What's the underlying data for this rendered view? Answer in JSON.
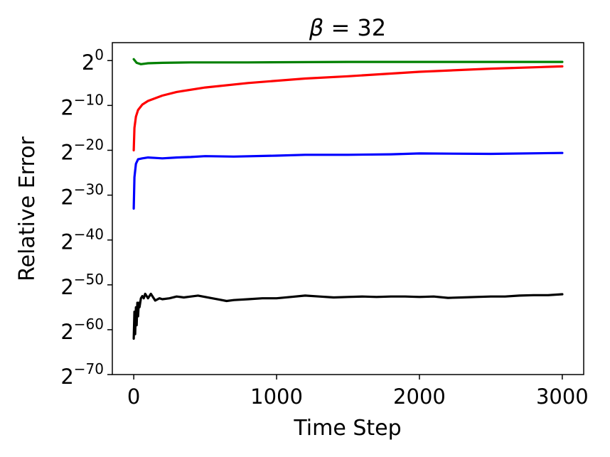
{
  "chart_data": {
    "type": "line",
    "title_symbol": "β",
    "title_rest": " = 32",
    "xlabel": "Time Step",
    "ylabel": "Relative Error",
    "xlim": [
      -150,
      3150
    ],
    "ylim": [
      -70,
      4
    ],
    "y_scale": "log2",
    "x_ticks": [
      0,
      1000,
      2000,
      3000
    ],
    "x_tick_labels": [
      "0",
      "1000",
      "2000",
      "3000"
    ],
    "y_ticks": [
      0,
      -10,
      -20,
      -30,
      -40,
      -50,
      -60,
      -70
    ],
    "y_tick_base": "2",
    "y_tick_exponents": [
      "0",
      "−10",
      "−20",
      "−30",
      "−40",
      "−50",
      "−60",
      "−70"
    ],
    "grid": false,
    "series": [
      {
        "color": "#008000",
        "x": [
          0,
          20,
          50,
          100,
          200,
          400,
          800,
          1500,
          2000,
          2500,
          3000
        ],
        "y": [
          0.3,
          -0.5,
          -0.8,
          -0.6,
          -0.5,
          -0.4,
          -0.4,
          -0.3,
          -0.3,
          -0.3,
          -0.3
        ]
      },
      {
        "color": "#ff0000",
        "x": [
          0,
          5,
          15,
          30,
          60,
          100,
          200,
          300,
          500,
          800,
          1200,
          1500,
          2000,
          2500,
          3000
        ],
        "y": [
          -20,
          -15,
          -12.5,
          -11,
          -9.8,
          -9,
          -7.8,
          -7,
          -6,
          -5,
          -4,
          -3.5,
          -2.5,
          -1.8,
          -1.3
        ]
      },
      {
        "color": "#0000ff",
        "x": [
          0,
          5,
          15,
          30,
          60,
          100,
          150,
          200,
          300,
          400,
          500,
          700,
          1000,
          1200,
          1500,
          1800,
          2000,
          2500,
          3000
        ],
        "y": [
          -33,
          -26,
          -23,
          -22,
          -21.8,
          -21.6,
          -21.7,
          -21.8,
          -21.6,
          -21.5,
          -21.3,
          -21.4,
          -21.2,
          -21.0,
          -21.0,
          -20.9,
          -20.7,
          -20.8,
          -20.6
        ]
      },
      {
        "color": "#000000",
        "x": [
          0,
          5,
          10,
          15,
          20,
          25,
          30,
          35,
          40,
          50,
          60,
          70,
          80,
          100,
          120,
          150,
          180,
          200,
          250,
          300,
          350,
          400,
          450,
          500,
          550,
          600,
          650,
          700,
          800,
          900,
          1000,
          1100,
          1200,
          1300,
          1400,
          1500,
          1600,
          1700,
          1800,
          1900,
          2000,
          2100,
          2200,
          2300,
          2400,
          2500,
          2600,
          2700,
          2800,
          2900,
          3000
        ],
        "y": [
          -62,
          -56,
          -61,
          -55,
          -59,
          -54,
          -57,
          -54,
          -55,
          -53,
          -52.5,
          -53,
          -52,
          -53,
          -52,
          -53.5,
          -53,
          -53.2,
          -53,
          -52.6,
          -52.8,
          -52.6,
          -52.4,
          -52.7,
          -53,
          -53.3,
          -53.6,
          -53.4,
          -53.2,
          -53,
          -53,
          -52.7,
          -52.4,
          -52.6,
          -52.8,
          -52.7,
          -52.6,
          -52.7,
          -52.6,
          -52.6,
          -52.7,
          -52.6,
          -52.9,
          -52.8,
          -52.7,
          -52.6,
          -52.6,
          -52.4,
          -52.3,
          -52.3,
          -52.1
        ]
      }
    ]
  }
}
